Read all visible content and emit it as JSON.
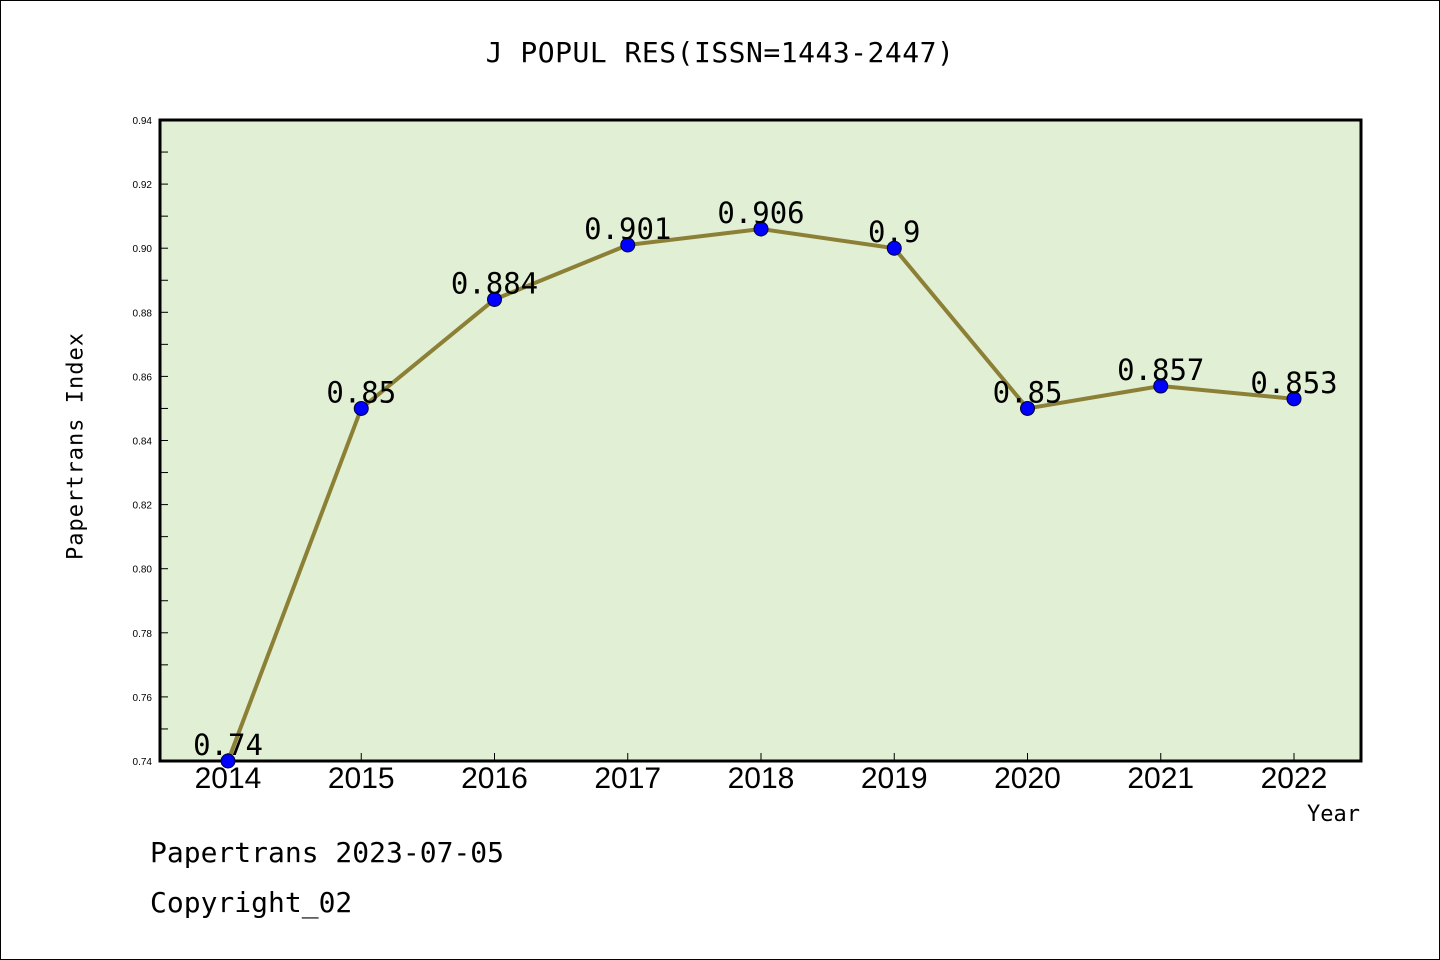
{
  "chart_data": {
    "type": "line",
    "title": "J POPUL RES(ISSN=1443-2447)",
    "xlabel": "Year",
    "ylabel": "Papertrans Index",
    "categories": [
      "2014",
      "2015",
      "2016",
      "2017",
      "2018",
      "2019",
      "2020",
      "2021",
      "2022"
    ],
    "series": [
      {
        "values": [
          0.74,
          0.85,
          0.884,
          0.901,
          0.906,
          0.9,
          0.85,
          0.857,
          0.853
        ]
      }
    ],
    "data_labels": [
      "0.74",
      "0.85",
      "0.884",
      "0.901",
      "0.906",
      "0.9",
      "0.85",
      "0.857",
      "0.853"
    ],
    "ylim": [
      0.74,
      0.94
    ],
    "yticks": [
      0.74,
      0.76,
      0.78,
      0.8,
      0.82,
      0.84,
      0.86,
      0.88,
      0.9,
      0.92,
      0.94
    ],
    "ytick_labels": [
      "0.74",
      "0.76",
      "0.78",
      "0.80",
      "0.82",
      "0.84",
      "0.86",
      "0.88",
      "0.90",
      "0.92",
      "0.94"
    ],
    "grid": false,
    "colors": {
      "plot_bg": "#e1efd4",
      "line": "#8b8035",
      "marker": "#0000ff"
    }
  },
  "footer": {
    "line1": "Papertrans 2023-07-05",
    "line2": "Copyright_02"
  }
}
